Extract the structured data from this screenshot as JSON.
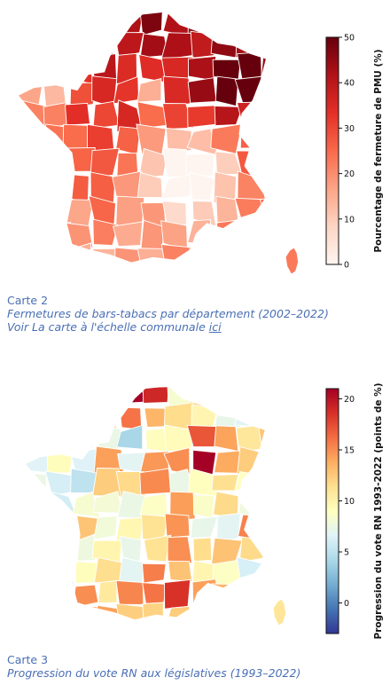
{
  "map1": {
    "legend": {
      "title": "Pourcentage de fermeture de PMU (%)",
      "min": 0,
      "max": 50,
      "ticks": [
        "0",
        "10",
        "20",
        "30",
        "40",
        "50"
      ],
      "palette": [
        "#fff5f0",
        "#fdd5c3",
        "#fca487",
        "#f96a4a",
        "#e32f27",
        "#b11218",
        "#67000d"
      ]
    },
    "caption": {
      "line1": "Carte 2",
      "line2": "Fermetures de bars-tabacs par département (2002–2022)",
      "line3_prefix": "Voir La carte à l'échelle communale ",
      "line3_link": "ici"
    }
  },
  "map2": {
    "legend": {
      "title": "Progression du vote RN 1993-2022 (points de %)",
      "min": -3,
      "max": 21,
      "ticks": [
        "0",
        "5",
        "10",
        "15",
        "20"
      ],
      "tick_values": [
        0,
        5,
        10,
        15,
        20
      ],
      "palette": [
        "#313695",
        "#4575b4",
        "#74add1",
        "#abd9e9",
        "#e0f3f8",
        "#ffffbf",
        "#fee090",
        "#fdae61",
        "#f46d43",
        "#d73027",
        "#a50026"
      ]
    },
    "caption": {
      "line1": "Carte 3",
      "line2": "Progression du vote RN aux législatives (1993–2022)"
    }
  }
}
